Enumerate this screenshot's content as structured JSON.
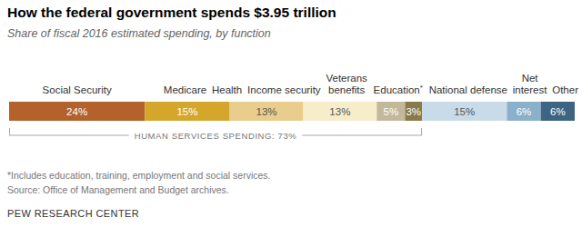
{
  "chart_data": {
    "type": "bar",
    "orientation": "horizontal",
    "stacked": true,
    "data_labels": true,
    "tick_labels": false,
    "title": "How the federal government spends $3.95 trillion",
    "subtitle": "Share of fiscal 2016 estimated spending, by function",
    "categories": [
      "Social Security",
      "Medicare",
      "Health",
      "Income security",
      "Veterans benefits",
      "Education*",
      "National defense",
      "Net interest",
      "Other"
    ],
    "values": [
      24,
      15,
      13,
      13,
      5,
      3,
      15,
      6,
      6
    ],
    "value_labels": [
      "24%",
      "15%",
      "13%",
      "13%",
      "5%",
      "3%",
      "15%",
      "6%",
      "6%"
    ],
    "colors": [
      "#b3622b",
      "#d4a72c",
      "#e8cd8c",
      "#f8edcb",
      "#c3b99a",
      "#8a7a4b",
      "#c9dbe8",
      "#8bb0ca",
      "#3d6583"
    ],
    "xlim": [
      0,
      100
    ],
    "annotations": [
      {
        "text": "HUMAN SERVICES SPENDING: 73%",
        "value": 73
      }
    ],
    "note": "*Includes education, training, employment and social services.",
    "source": "Source: Office of Management and Budget archives.",
    "credit": "PEW RESEARCH CENTER"
  }
}
